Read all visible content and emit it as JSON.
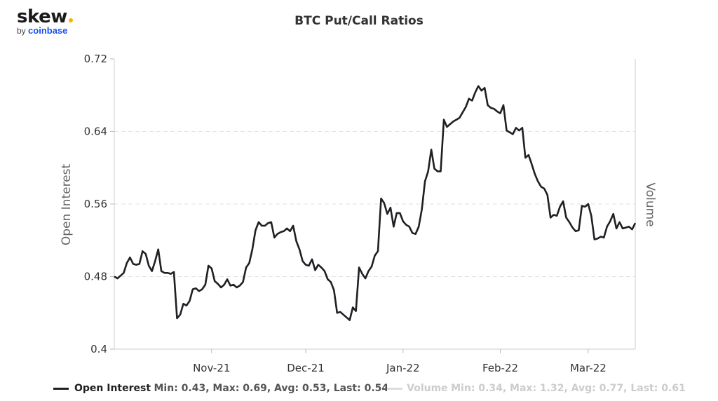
{
  "brand": {
    "name": "skew",
    "by": "by",
    "parent": "coinbase",
    "accent": "#f4b400",
    "parent_color": "#1652f0"
  },
  "chart_data": {
    "type": "line",
    "title": "BTC Put/Call Ratios",
    "ylabel_left": "Open Interest",
    "ylabel_right": "Volume",
    "ylim": [
      0.4,
      0.72
    ],
    "yticks": [
      "0.72",
      "0.64",
      "0.56",
      "0.48",
      "0.4"
    ],
    "xticks": [
      "Nov-21",
      "Dec-21",
      "Jan-22",
      "Feb-22",
      "Mar-22"
    ],
    "grid": "horizontal dashed",
    "legend_position": "bottom",
    "series": [
      {
        "name": "Open Interest",
        "color": "#1f1f24",
        "stats": "Min: 0.43, Max: 0.69, Avg: 0.53, Last: 0.54",
        "x_start": "2021-10-01",
        "values": [
          0.48,
          0.478,
          0.481,
          0.484,
          0.495,
          0.501,
          0.494,
          0.493,
          0.494,
          0.508,
          0.505,
          0.492,
          0.486,
          0.497,
          0.51,
          0.486,
          0.484,
          0.484,
          0.483,
          0.485,
          0.434,
          0.438,
          0.45,
          0.448,
          0.453,
          0.466,
          0.467,
          0.464,
          0.466,
          0.471,
          0.492,
          0.489,
          0.475,
          0.472,
          0.468,
          0.471,
          0.477,
          0.47,
          0.471,
          0.468,
          0.47,
          0.474,
          0.49,
          0.495,
          0.51,
          0.531,
          0.54,
          0.536,
          0.536,
          0.539,
          0.54,
          0.523,
          0.527,
          0.529,
          0.53,
          0.533,
          0.53,
          0.536,
          0.519,
          0.51,
          0.497,
          0.493,
          0.492,
          0.499,
          0.487,
          0.493,
          0.49,
          0.486,
          0.477,
          0.474,
          0.465,
          0.44,
          0.441,
          0.438,
          0.435,
          0.432,
          0.446,
          0.442,
          0.49,
          0.483,
          0.478,
          0.486,
          0.491,
          0.503,
          0.508,
          0.566,
          0.561,
          0.549,
          0.556,
          0.535,
          0.55,
          0.55,
          0.541,
          0.537,
          0.535,
          0.528,
          0.527,
          0.535,
          0.554,
          0.585,
          0.596,
          0.62,
          0.599,
          0.596,
          0.596,
          0.653,
          0.645,
          0.648,
          0.651,
          0.653,
          0.655,
          0.661,
          0.667,
          0.676,
          0.674,
          0.683,
          0.69,
          0.685,
          0.688,
          0.669,
          0.666,
          0.665,
          0.662,
          0.66,
          0.669,
          0.641,
          0.639,
          0.637,
          0.644,
          0.641,
          0.644,
          0.611,
          0.614,
          0.604,
          0.593,
          0.585,
          0.579,
          0.577,
          0.57,
          0.545,
          0.548,
          0.547,
          0.557,
          0.563,
          0.545,
          0.54,
          0.534,
          0.53,
          0.531,
          0.558,
          0.557,
          0.56,
          0.547,
          0.521,
          0.522,
          0.524,
          0.523,
          0.535,
          0.541,
          0.549,
          0.533,
          0.54,
          0.533,
          0.534,
          0.535,
          0.532,
          0.539
        ]
      },
      {
        "name": "Volume",
        "color": "#dddddd",
        "stats": "Min: 0.34, Max: 1.32, Avg: 0.77, Last: 0.61"
      }
    ]
  }
}
